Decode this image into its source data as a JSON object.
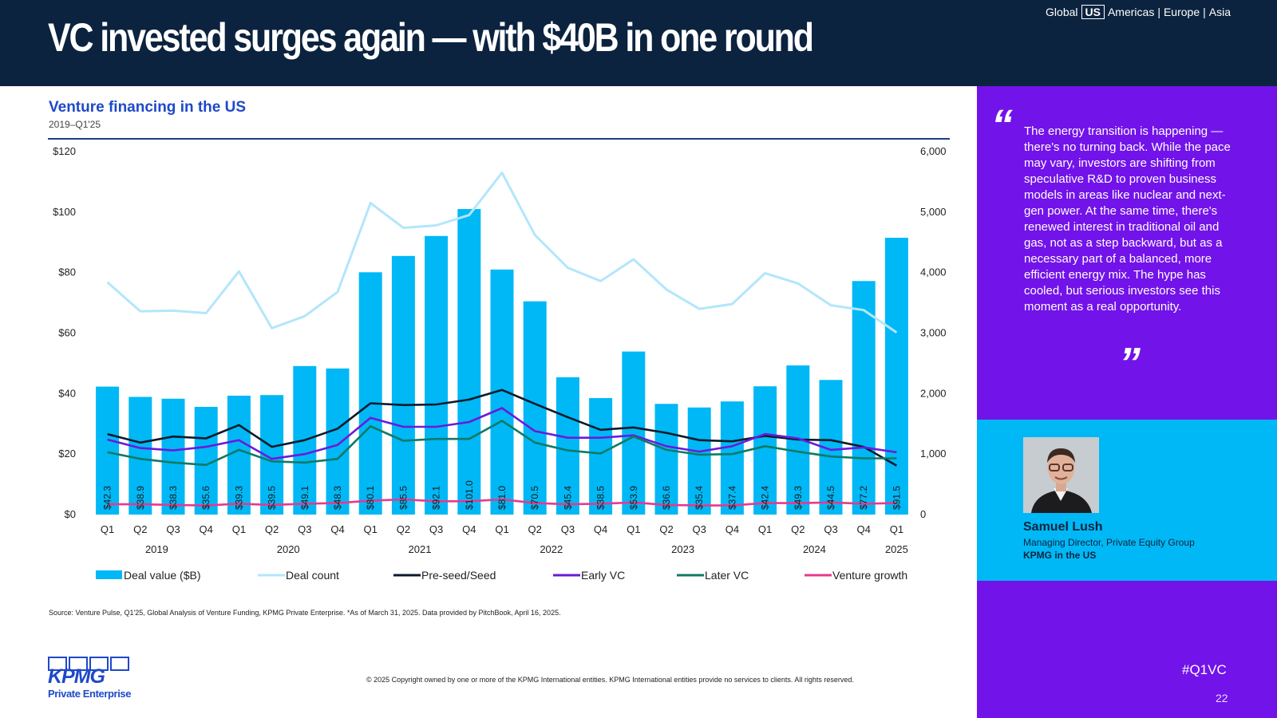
{
  "header": {
    "title": "VC invested surges again — with $40B in one round",
    "regions": [
      {
        "label": "Global",
        "active": false
      },
      {
        "label": "US",
        "active": true
      },
      {
        "label": "Americas",
        "active": false
      },
      {
        "label": "Europe",
        "active": false
      },
      {
        "label": "Asia",
        "active": false
      }
    ],
    "separator": "|"
  },
  "chart": {
    "title": "Venture financing in the US",
    "subtitle": "2019–Q1'25"
  },
  "chart_data": {
    "type": "bar",
    "title": "Venture financing in the US",
    "subtitle": "2019–Q1'25",
    "x": [
      "Q1",
      "Q2",
      "Q3",
      "Q4",
      "Q1",
      "Q2",
      "Q3",
      "Q4",
      "Q1",
      "Q2",
      "Q3",
      "Q4",
      "Q1",
      "Q2",
      "Q3",
      "Q4",
      "Q1",
      "Q2",
      "Q3",
      "Q4",
      "Q1",
      "Q2",
      "Q3",
      "Q4",
      "Q1"
    ],
    "years": [
      {
        "label": "2019",
        "count": 4
      },
      {
        "label": "2020",
        "count": 4
      },
      {
        "label": "2021",
        "count": 4
      },
      {
        "label": "2022",
        "count": 4
      },
      {
        "label": "2023",
        "count": 4
      },
      {
        "label": "2024",
        "count": 4
      },
      {
        "label": "2025",
        "count": 1
      }
    ],
    "y_left_ticks": [
      "$0",
      "$20",
      "$40",
      "$60",
      "$80",
      "$100",
      "$120"
    ],
    "y_left_lim": [
      0,
      120
    ],
    "y_right_ticks": [
      "0",
      "1,000",
      "2,000",
      "3,000",
      "4,000",
      "5,000",
      "6,000"
    ],
    "y_right_lim": [
      0,
      6000
    ],
    "series": [
      {
        "name": "Deal value ($B)",
        "kind": "bar",
        "axis": "left",
        "color": "#00b8f5",
        "values": [
          42.3,
          38.9,
          38.3,
          35.6,
          39.3,
          39.5,
          49.1,
          48.3,
          80.1,
          85.5,
          92.1,
          101.0,
          81.0,
          70.5,
          45.4,
          38.5,
          53.9,
          36.6,
          35.4,
          37.4,
          42.4,
          49.3,
          44.5,
          77.2,
          91.5
        ],
        "labels": [
          "$42.3",
          "$38.9",
          "$38.3",
          "$35.6",
          "$39.3",
          "$39.5",
          "$49.1",
          "$48.3",
          "$80.1",
          "$85.5",
          "$92.1",
          "$101.0",
          "$81.0",
          "$70.5",
          "$45.4",
          "$38.5",
          "$53.9",
          "$36.6",
          "$35.4",
          "$37.4",
          "$42.4",
          "$49.3",
          "$44.5",
          "$77.2",
          "$91.5"
        ]
      },
      {
        "name": "Deal count",
        "kind": "line",
        "axis": "right",
        "color": "#b3e6fb",
        "values": [
          3840,
          3360,
          3370,
          3330,
          4020,
          3080,
          3280,
          3680,
          5150,
          4740,
          4780,
          4950,
          5650,
          4620,
          4080,
          3860,
          4220,
          3720,
          3400,
          3480,
          3990,
          3820,
          3460,
          3380,
          3010
        ]
      },
      {
        "name": "Pre-seed/Seed",
        "kind": "line",
        "axis": "right",
        "color": "#0a1a2a",
        "values": [
          1330,
          1190,
          1290,
          1260,
          1480,
          1120,
          1230,
          1420,
          1840,
          1810,
          1820,
          1900,
          2060,
          1830,
          1610,
          1400,
          1440,
          1350,
          1230,
          1210,
          1300,
          1240,
          1230,
          1120,
          810
        ]
      },
      {
        "name": "Early VC",
        "kind": "line",
        "axis": "right",
        "color": "#6a1bd9",
        "values": [
          1240,
          1100,
          1060,
          1120,
          1230,
          920,
          1000,
          1150,
          1600,
          1450,
          1450,
          1530,
          1760,
          1380,
          1270,
          1270,
          1310,
          1130,
          1040,
          1130,
          1330,
          1260,
          1070,
          1110,
          1030
        ]
      },
      {
        "name": "Later VC",
        "kind": "line",
        "axis": "right",
        "color": "#0f7a66",
        "values": [
          1030,
          920,
          860,
          820,
          1070,
          880,
          860,
          920,
          1460,
          1220,
          1250,
          1250,
          1550,
          1190,
          1060,
          1010,
          1290,
          1070,
          990,
          1000,
          1130,
          1040,
          960,
          930,
          930
        ]
      },
      {
        "name": "Venture growth",
        "kind": "line",
        "axis": "right",
        "color": "#e8388d",
        "values": [
          170,
          170,
          160,
          150,
          180,
          160,
          180,
          190,
          230,
          250,
          220,
          220,
          250,
          190,
          170,
          180,
          200,
          160,
          150,
          150,
          190,
          190,
          200,
          180,
          190
        ]
      }
    ],
    "legend_position": "bottom"
  },
  "source_note": "Source: Venture Pulse, Q1'25, Global Analysis of Venture Funding, KPMG Private Enterprise. *As of March 31, 2025. Data provided by PitchBook, April 16, 2025.",
  "copyright": "© 2025 Copyright owned by one or more of the KPMG International entities. KPMG International entities provide no services to clients. All rights reserved.",
  "logo": {
    "wordmark": "KPMG",
    "sub": "Private Enterprise"
  },
  "quote": {
    "open_mark": "“",
    "close_mark": "”",
    "text": "The energy transition is happening — there's no turning back. While the pace may vary, investors are shifting from speculative R&D to proven business models in areas like nuclear and next-gen power. At the same time, there's renewed interest in traditional oil and gas, not as a step backward, but as a necessary part of a balanced, more efficient energy mix. The hype has cooled, but serious investors see this moment as a real opportunity."
  },
  "person": {
    "name": "Samuel Lush",
    "role": "Managing Director, Private Equity Group",
    "org": "KPMG in the US"
  },
  "footer": {
    "hashtag": "#Q1VC",
    "page": "22"
  }
}
